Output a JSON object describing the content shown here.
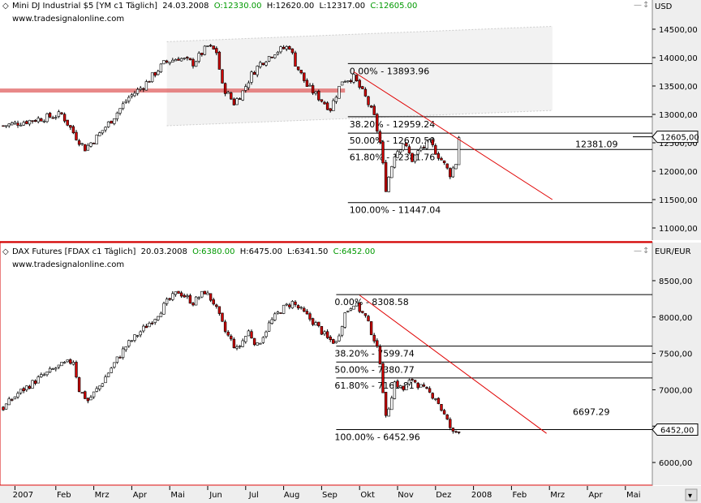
{
  "colors": {
    "background": "#ffffff",
    "candle": "#000000",
    "bear": "#cc0000",
    "trend": "#e00000",
    "axis_bg": "#eeeeee",
    "frame_red": "#d40000",
    "channel": "#cccccc",
    "highlight": "#e06060"
  },
  "chart_data": [
    {
      "type": "candlestick",
      "header": {
        "icon": "diamond-icon",
        "title": "Mini DJ Industrial $5 [YM c1  Täglich]",
        "date": "24.03.2008",
        "open": "O:12330.00",
        "high": "H:12620.00",
        "low": "L:12317.00",
        "close": "C:12605.00"
      },
      "watermark": "www.tradesignalonline.com",
      "unit": "USD",
      "ylim": [
        10900,
        14700
      ],
      "yticks": [
        "14500,00",
        "14000,00",
        "13500,00",
        "13000,00",
        "12500,00",
        "12000,00",
        "11500,00",
        "11000,00"
      ],
      "ytick_values": [
        14500,
        14000,
        13500,
        13000,
        12500,
        12000,
        11500,
        11000
      ],
      "last_price": "12605,00",
      "last_value": 12605,
      "anchors": [
        {
          "t": 0,
          "v": 12800
        },
        {
          "t": 10,
          "v": 12900
        },
        {
          "t": 20,
          "v": 13000
        },
        {
          "t": 25,
          "v": 12600
        },
        {
          "t": 28,
          "v": 12400
        },
        {
          "t": 32,
          "v": 12600
        },
        {
          "t": 37,
          "v": 12900
        },
        {
          "t": 43,
          "v": 13300
        },
        {
          "t": 48,
          "v": 13500
        },
        {
          "t": 55,
          "v": 13900
        },
        {
          "t": 60,
          "v": 14000
        },
        {
          "t": 65,
          "v": 13900
        },
        {
          "t": 70,
          "v": 14200
        },
        {
          "t": 73,
          "v": 14100
        },
        {
          "t": 75,
          "v": 13500
        },
        {
          "t": 79,
          "v": 13200
        },
        {
          "t": 82,
          "v": 13400
        },
        {
          "t": 85,
          "v": 13700
        },
        {
          "t": 88,
          "v": 13900
        },
        {
          "t": 93,
          "v": 14100
        },
        {
          "t": 98,
          "v": 14200
        },
        {
          "t": 100,
          "v": 13900
        },
        {
          "t": 104,
          "v": 13500
        },
        {
          "t": 108,
          "v": 13300
        },
        {
          "t": 112,
          "v": 13100
        },
        {
          "t": 116,
          "v": 13600
        },
        {
          "t": 120,
          "v": 13650
        },
        {
          "t": 124,
          "v": 13300
        },
        {
          "t": 127,
          "v": 12950
        },
        {
          "t": 129,
          "v": 12500
        },
        {
          "t": 131,
          "v": 11700
        },
        {
          "t": 134,
          "v": 12300
        },
        {
          "t": 137,
          "v": 12500
        },
        {
          "t": 140,
          "v": 12200
        },
        {
          "t": 143,
          "v": 12400
        },
        {
          "t": 146,
          "v": 12500
        },
        {
          "t": 150,
          "v": 12200
        },
        {
          "t": 153,
          "v": 11950
        },
        {
          "t": 155,
          "v": 12150
        },
        {
          "t": 156,
          "v": 12605
        }
      ],
      "fibonacci": [
        {
          "label": "0.00% - 13893.96",
          "value": 13893.96
        },
        {
          "label": "38.20% - 12959.24",
          "value": 12959.24
        },
        {
          "label": "50.00% - 12670.50",
          "value": 12670.5
        },
        {
          "label": "61.80% - 12381.76",
          "value": 12381.76
        },
        {
          "label": "100.00% - 11447.04",
          "value": 11447.04
        }
      ],
      "fib_t_start": 118,
      "trendline": {
        "t1": 120,
        "v1": 13750,
        "t2": 188,
        "v2": 11500,
        "label": "12381.09",
        "label_value": 12381.09
      },
      "horizontal_band": {
        "t1": -3,
        "t2": 117,
        "v": 13420
      },
      "channel": {
        "t1": 56,
        "v1_top": 14280,
        "v1_bot": 12800,
        "t2": 188,
        "v2_top": 14550,
        "v2_bot": 13070
      }
    },
    {
      "type": "candlestick",
      "header": {
        "icon": "diamond-icon",
        "title": "DAX Futures [FDAX c1  Täglich]",
        "date": "20.03.2008",
        "open": "O:6380.00",
        "high": "H:6475.00",
        "low": "L:6341.50",
        "close": "C:6452.00"
      },
      "watermark": "www.tradesignalonline.com",
      "unit": "EUR/EUR",
      "ylim": [
        5800,
        8600
      ],
      "yticks": [
        "8500,00",
        "8000,00",
        "7500,00",
        "7000,00",
        "6500,00",
        "6000,00"
      ],
      "ytick_values": [
        8500,
        8000,
        7500,
        7000,
        6500,
        6000
      ],
      "last_price": "6452,00",
      "last_value": 6452,
      "anchors": [
        {
          "t": 0,
          "v": 6750
        },
        {
          "t": 5,
          "v": 6950
        },
        {
          "t": 12,
          "v": 7150
        },
        {
          "t": 18,
          "v": 7300
        },
        {
          "t": 24,
          "v": 7400
        },
        {
          "t": 26,
          "v": 7000
        },
        {
          "t": 29,
          "v": 6850
        },
        {
          "t": 33,
          "v": 7050
        },
        {
          "t": 37,
          "v": 7300
        },
        {
          "t": 42,
          "v": 7600
        },
        {
          "t": 47,
          "v": 7800
        },
        {
          "t": 52,
          "v": 8000
        },
        {
          "t": 56,
          "v": 8200
        },
        {
          "t": 60,
          "v": 8350
        },
        {
          "t": 65,
          "v": 8200
        },
        {
          "t": 69,
          "v": 8350
        },
        {
          "t": 72,
          "v": 8200
        },
        {
          "t": 76,
          "v": 7800
        },
        {
          "t": 80,
          "v": 7550
        },
        {
          "t": 84,
          "v": 7800
        },
        {
          "t": 87,
          "v": 7600
        },
        {
          "t": 91,
          "v": 7900
        },
        {
          "t": 95,
          "v": 8100
        },
        {
          "t": 99,
          "v": 8200
        },
        {
          "t": 103,
          "v": 8050
        },
        {
          "t": 107,
          "v": 7900
        },
        {
          "t": 111,
          "v": 7700
        },
        {
          "t": 114,
          "v": 7650
        },
        {
          "t": 117,
          "v": 8050
        },
        {
          "t": 120,
          "v": 8200
        },
        {
          "t": 124,
          "v": 8000
        },
        {
          "t": 127,
          "v": 7700
        },
        {
          "t": 129,
          "v": 7400
        },
        {
          "t": 131,
          "v": 6600
        },
        {
          "t": 134,
          "v": 7100
        },
        {
          "t": 137,
          "v": 7000
        },
        {
          "t": 140,
          "v": 7150
        },
        {
          "t": 144,
          "v": 7000
        },
        {
          "t": 148,
          "v": 6900
        },
        {
          "t": 151,
          "v": 6650
        },
        {
          "t": 154,
          "v": 6400
        },
        {
          "t": 156,
          "v": 6452
        }
      ],
      "fibonacci": [
        {
          "label": "0.00% - 8308.58",
          "value": 8308.58
        },
        {
          "label": "38.20% - 7599.74",
          "value": 7599.74
        },
        {
          "label": "50.00% - 7380.77",
          "value": 7380.77
        },
        {
          "label": "61.80% - 7161.81",
          "value": 7161.81
        },
        {
          "label": "100.00% - 6452.96",
          "value": 6452.96
        }
      ],
      "fib_t_start": 114,
      "trendline": {
        "t1": 122,
        "v1": 8300,
        "t2": 186,
        "v2": 6400,
        "label": "6697.29",
        "label_value": 6697.29
      }
    }
  ],
  "time_axis": {
    "labels": [
      {
        "label": "2007",
        "t": 4
      },
      {
        "label": "Feb",
        "t": 18
      },
      {
        "label": "Mrz",
        "t": 31
      },
      {
        "label": "Apr",
        "t": 44
      },
      {
        "label": "Mai",
        "t": 57
      },
      {
        "label": "Jun",
        "t": 70
      },
      {
        "label": "Jul",
        "t": 83
      },
      {
        "label": "Aug",
        "t": 96
      },
      {
        "label": "Sep",
        "t": 109
      },
      {
        "label": "Okt",
        "t": 122
      },
      {
        "label": "Nov",
        "t": 135
      },
      {
        "label": "Dez",
        "t": 148
      },
      {
        "label": "2008",
        "t": 161
      },
      {
        "label": "Feb",
        "t": 174
      },
      {
        "label": "Mrz",
        "t": 187
      },
      {
        "label": "Apr",
        "t": 200
      },
      {
        "label": "Mai",
        "t": 213
      }
    ]
  }
}
